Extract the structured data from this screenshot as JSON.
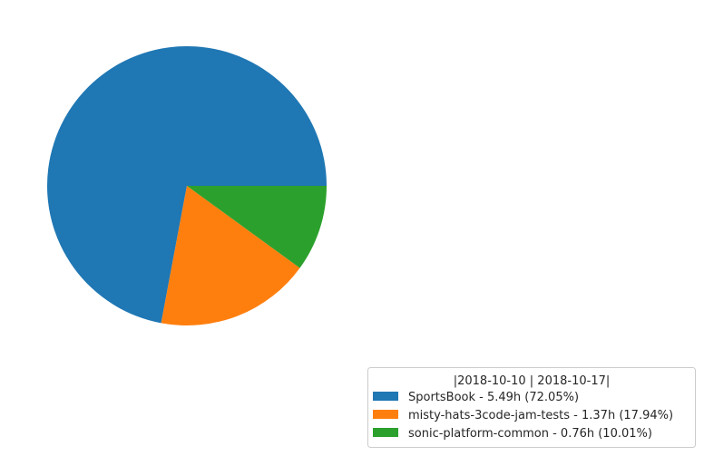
{
  "chart_data": {
    "type": "pie",
    "slices": [
      {
        "label": "SportsBook - 5.49h (72.05%)",
        "value": 72.05,
        "color": "#1f77b4"
      },
      {
        "label": "misty-hats-3code-jam-tests - 1.37h (17.94%)",
        "value": 17.94,
        "color": "#ff7f0e"
      },
      {
        "label": "sonic-platform-common - 0.76h (10.01%)",
        "value": 10.01,
        "color": "#2ca02c"
      }
    ],
    "legend": {
      "title": "|2018-10-10 | 2018-10-17|",
      "placement": "bottom-right"
    },
    "start_angle_deg": 0,
    "direction": "counterclockwise"
  }
}
